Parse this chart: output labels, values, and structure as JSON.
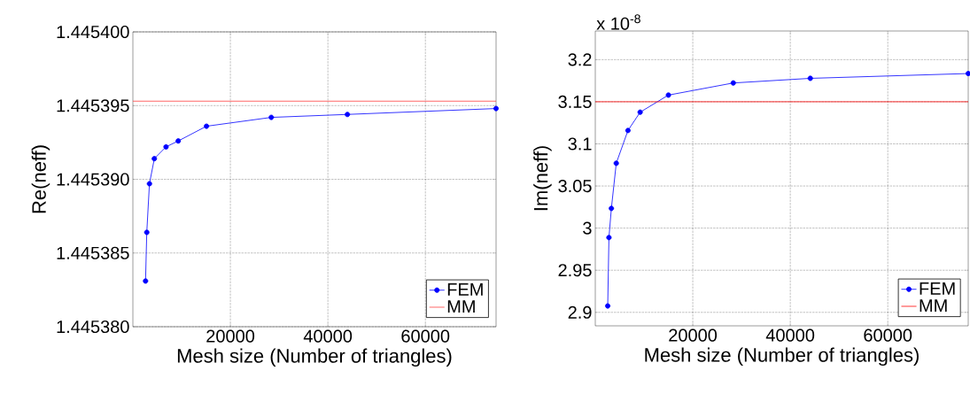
{
  "chart_data": [
    {
      "type": "line",
      "xlabel": "Mesh size (Number of triangles)",
      "ylabel": "Re(neff)",
      "x": [
        2600,
        2850,
        3400,
        4400,
        6800,
        9300,
        15100,
        28400,
        44000,
        74500
      ],
      "series": [
        {
          "name": "FEM",
          "color": "#0000ff",
          "marker": "circle",
          "values": [
            1.4453831,
            1.4453864,
            1.4453897,
            1.4453914,
            1.4453922,
            1.4453926,
            1.4453936,
            1.4453942,
            1.4453944,
            1.4453948
          ]
        },
        {
          "name": "MM",
          "color": "#ff4040",
          "marker": "none",
          "x": [
            0,
            74500
          ],
          "values": [
            1.4453953,
            1.4453953
          ]
        }
      ],
      "xlim": [
        0,
        74500
      ],
      "ylim": [
        1.44538,
        1.4454
      ],
      "xticks": [
        20000,
        40000,
        60000
      ],
      "yticks": [
        {
          "value": 1.44538,
          "label": "1.445380"
        },
        {
          "value": 1.445385,
          "label": "1.445385"
        },
        {
          "value": 1.44539,
          "label": "1.445390"
        },
        {
          "value": 1.445395,
          "label": "1.445395"
        },
        {
          "value": 1.4454,
          "label": "1.445400"
        }
      ],
      "grid": true,
      "legend": "bottom right"
    },
    {
      "type": "line",
      "xlabel": "Mesh size (Number of triangles)",
      "ylabel": "Im(neff)",
      "x": [
        2550,
        2800,
        3300,
        4300,
        6700,
        9200,
        15000,
        28300,
        44100,
        76500
      ],
      "series": [
        {
          "name": "FEM",
          "color": "#0000ff",
          "marker": "circle",
          "values": [
            2.9076,
            2.9888,
            3.0234,
            3.077,
            3.1159,
            3.1376,
            3.1579,
            3.1723,
            3.1778,
            3.1835
          ]
        },
        {
          "name": "MM",
          "color": "#ff0000",
          "marker": "none",
          "x": [
            0,
            76500
          ],
          "values": [
            3.15,
            3.15
          ]
        }
      ],
      "xlim": [
        0,
        76500
      ],
      "ylim": [
        2.884,
        3.234
      ],
      "xticks": [
        20000,
        40000,
        60000
      ],
      "yticks": [
        2.9,
        2.95,
        3,
        3.05,
        3.1,
        3.15,
        3.2
      ],
      "annotations": [
        "x 10$^{-8}$"
      ],
      "grid": true,
      "legend": "bottom right"
    }
  ]
}
